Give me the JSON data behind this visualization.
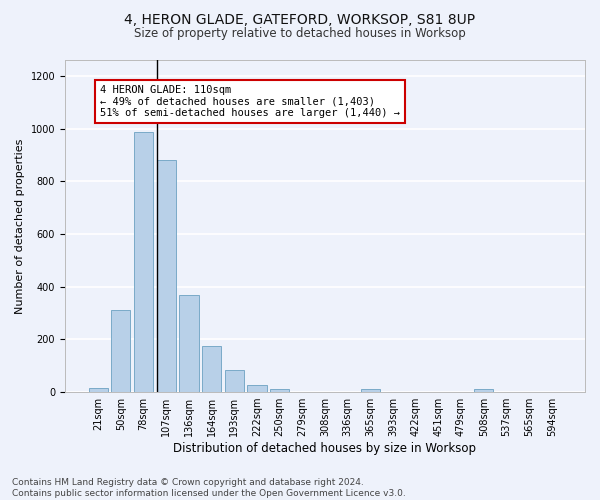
{
  "title_line1": "4, HERON GLADE, GATEFORD, WORKSOP, S81 8UP",
  "title_line2": "Size of property relative to detached houses in Worksop",
  "xlabel": "Distribution of detached houses by size in Worksop",
  "ylabel": "Number of detached properties",
  "footnote": "Contains HM Land Registry data © Crown copyright and database right 2024.\nContains public sector information licensed under the Open Government Licence v3.0.",
  "categories": [
    "21sqm",
    "50sqm",
    "78sqm",
    "107sqm",
    "136sqm",
    "164sqm",
    "193sqm",
    "222sqm",
    "250sqm",
    "279sqm",
    "308sqm",
    "336sqm",
    "365sqm",
    "393sqm",
    "422sqm",
    "451sqm",
    "479sqm",
    "508sqm",
    "537sqm",
    "565sqm",
    "594sqm"
  ],
  "values": [
    15,
    310,
    985,
    880,
    370,
    175,
    85,
    27,
    10,
    0,
    0,
    0,
    10,
    0,
    0,
    0,
    0,
    12,
    0,
    0,
    0
  ],
  "bar_color": "#b8d0e8",
  "bar_edge_color": "#7aaac8",
  "ylim": [
    0,
    1260
  ],
  "yticks": [
    0,
    200,
    400,
    600,
    800,
    1000,
    1200
  ],
  "annotation_text": "4 HERON GLADE: 110sqm\n← 49% of detached houses are smaller (1,403)\n51% of semi-detached houses are larger (1,440) →",
  "annotation_box_color": "#ffffff",
  "annotation_box_edge_color": "#cc0000",
  "vline_x": 2.575,
  "background_color": "#eef2fb",
  "grid_color": "#ffffff",
  "title_fontsize": 10,
  "subtitle_fontsize": 8.5,
  "ylabel_fontsize": 8,
  "xlabel_fontsize": 8.5,
  "tick_fontsize": 7,
  "annotation_fontsize": 7.5,
  "footnote_fontsize": 6.5
}
